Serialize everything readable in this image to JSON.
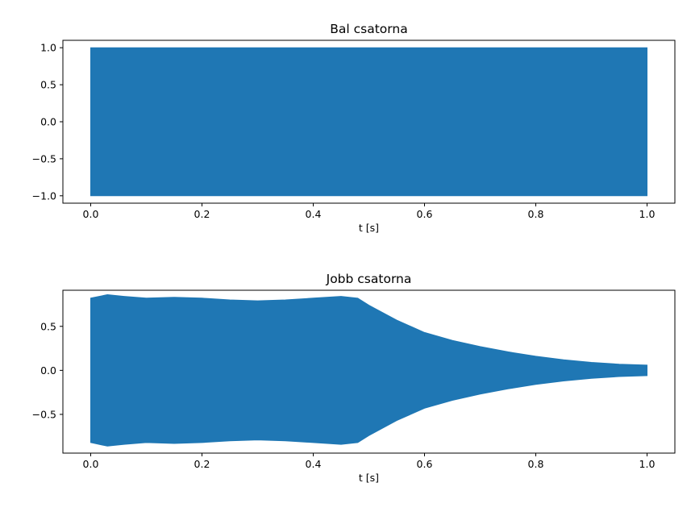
{
  "chart_data": [
    {
      "type": "line",
      "title": "Bal csatorna",
      "xlabel": "t [s]",
      "ylabel": "",
      "xlim": [
        -0.05,
        1.05
      ],
      "ylim": [
        -1.1,
        1.1
      ],
      "xticks": [
        0.0,
        0.2,
        0.4,
        0.6,
        0.8,
        1.0
      ],
      "xtick_labels": [
        "0.0",
        "0.2",
        "0.4",
        "0.6",
        "0.8",
        "1.0"
      ],
      "yticks": [
        1.0,
        0.5,
        0.0,
        -0.5,
        -1.0
      ],
      "ytick_labels": [
        "1.0",
        "0.5",
        "0.0",
        "−0.5",
        "−1.0"
      ],
      "grid": false,
      "series": [
        {
          "color": "#1f77b4",
          "envelope_t": [
            0.0,
            0.1,
            0.2,
            0.3,
            0.4,
            0.5,
            0.6,
            0.7,
            0.8,
            0.9,
            1.0
          ],
          "envelope_max": [
            1.0,
            1.0,
            1.0,
            1.0,
            1.0,
            1.0,
            1.0,
            1.0,
            1.0,
            1.0,
            1.0
          ],
          "envelope_min": [
            -1.0,
            -1.0,
            -1.0,
            -1.0,
            -1.0,
            -1.0,
            -1.0,
            -1.0,
            -1.0,
            -1.0,
            -1.0
          ]
        }
      ]
    },
    {
      "type": "line",
      "title": "Jobb csatorna",
      "xlabel": "t [s]",
      "ylabel": "",
      "xlim": [
        -0.05,
        1.05
      ],
      "ylim": [
        -0.94,
        0.91
      ],
      "xticks": [
        0.0,
        0.2,
        0.4,
        0.6,
        0.8,
        1.0
      ],
      "xtick_labels": [
        "0.0",
        "0.2",
        "0.4",
        "0.6",
        "0.8",
        "1.0"
      ],
      "yticks": [
        0.5,
        0.0,
        -0.5
      ],
      "ytick_labels": [
        "0.5",
        "0.0",
        "−0.5"
      ],
      "grid": false,
      "series": [
        {
          "color": "#1f77b4",
          "envelope_t": [
            0.0,
            0.03,
            0.06,
            0.1,
            0.15,
            0.2,
            0.25,
            0.3,
            0.35,
            0.4,
            0.45,
            0.48,
            0.5,
            0.55,
            0.6,
            0.65,
            0.7,
            0.75,
            0.8,
            0.85,
            0.9,
            0.95,
            1.0
          ],
          "envelope_max": [
            0.82,
            0.86,
            0.84,
            0.82,
            0.83,
            0.82,
            0.8,
            0.79,
            0.8,
            0.82,
            0.84,
            0.82,
            0.74,
            0.57,
            0.43,
            0.34,
            0.27,
            0.21,
            0.16,
            0.12,
            0.09,
            0.07,
            0.06
          ],
          "envelope_min": [
            -0.82,
            -0.86,
            -0.84,
            -0.82,
            -0.83,
            -0.82,
            -0.8,
            -0.79,
            -0.8,
            -0.82,
            -0.84,
            -0.82,
            -0.74,
            -0.57,
            -0.43,
            -0.34,
            -0.27,
            -0.21,
            -0.16,
            -0.12,
            -0.09,
            -0.07,
            -0.06
          ]
        }
      ]
    }
  ]
}
